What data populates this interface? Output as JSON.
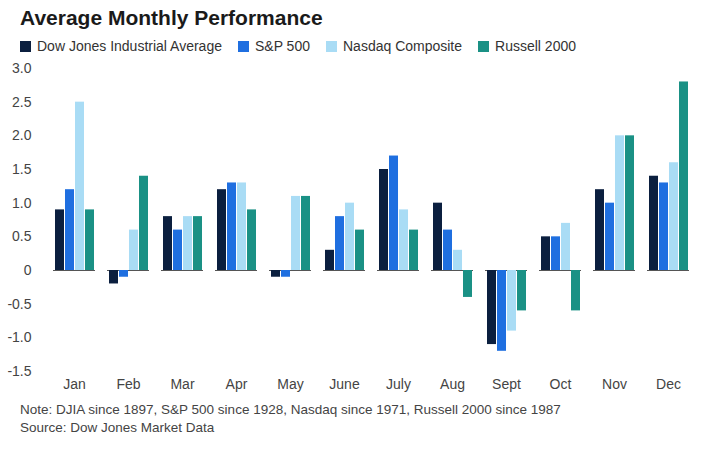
{
  "chart_data": {
    "type": "bar",
    "title": "Average Monthly Performance",
    "note": "Note: DJIA since 1897, S&P 500 since 1928, Nasdaq since 1971, Russell 2000 since 1987",
    "source": "Source: Dow Jones Market Data",
    "categories": [
      "Jan",
      "Feb",
      "Mar",
      "Apr",
      "May",
      "June",
      "July",
      "Aug",
      "Sept",
      "Oct",
      "Nov",
      "Dec"
    ],
    "series": [
      {
        "name": "Dow Jones Industrial Average",
        "color": "#0b1f3f",
        "values": [
          0.9,
          -0.2,
          0.8,
          1.2,
          -0.1,
          0.3,
          1.5,
          1.0,
          -1.1,
          0.5,
          1.2,
          1.4
        ]
      },
      {
        "name": "S&P 500",
        "color": "#1f6fe0",
        "values": [
          1.2,
          -0.1,
          0.6,
          1.3,
          -0.1,
          0.8,
          1.7,
          0.6,
          -1.2,
          0.5,
          1.0,
          1.3
        ]
      },
      {
        "name": "Nasdaq Composite",
        "color": "#a9dcf5",
        "values": [
          2.5,
          0.6,
          0.8,
          1.3,
          1.1,
          1.0,
          0.9,
          0.3,
          -0.9,
          0.7,
          2.0,
          1.6
        ]
      },
      {
        "name": "Russell 2000",
        "color": "#1a9185",
        "values": [
          0.9,
          1.4,
          0.8,
          0.9,
          1.1,
          0.6,
          0.6,
          -0.4,
          -0.6,
          -0.6,
          2.0,
          2.8
        ]
      }
    ],
    "ylim": [
      -1.5,
      3.0
    ],
    "yticks": [
      -1.5,
      {
        "value": -1,
        "label": "-1.0"
      },
      -0.5,
      0,
      0.5,
      {
        "value": 1,
        "label": "1.0"
      },
      1.5,
      {
        "value": 2,
        "label": "2.0"
      },
      2.5,
      {
        "value": 3,
        "label": "3.0"
      }
    ],
    "grid": false,
    "legend": "top-left"
  }
}
